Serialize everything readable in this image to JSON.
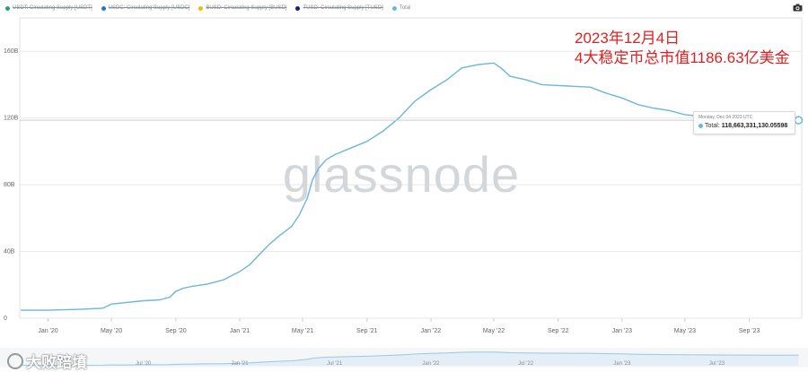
{
  "legend": [
    {
      "label": "USDT: Circulating Supply [USDT]",
      "color": "#26a17b",
      "enabled": false
    },
    {
      "label": "USDC: Circulating Supply [USDC]",
      "color": "#2775ca",
      "enabled": false
    },
    {
      "label": "BUSD: Circulating Supply [BUSD]",
      "color": "#f0b90b",
      "enabled": false
    },
    {
      "label": "TUSD: Circulating Supply [TUSD]",
      "color": "#1a1a8c",
      "enabled": false
    },
    {
      "label": "Total",
      "color": "#6bb6dd",
      "enabled": true
    }
  ],
  "icons": {
    "toolbar": "camera-icon"
  },
  "watermark": "glassnode",
  "annotation": {
    "line1": "2023年12月4日",
    "line2": "4大稳定币总市值1186.63亿美金"
  },
  "tooltip": {
    "date": "Monday, Dec 04 2023 UTC",
    "label": "Total:",
    "value": "118,663,331,130.05598"
  },
  "source_watermark": "大败踣墳",
  "navigator": {
    "labels": [
      "Jul '20",
      "Jan '21",
      "Jul '21",
      "Jan '22",
      "Jul '22",
      "Jan '23",
      "Jul '23"
    ]
  },
  "colors": {
    "line": "#6bb6dd",
    "grid": "#e6e8ea",
    "axis": "#9aa0a6"
  },
  "chart_data": {
    "type": "line",
    "title": "",
    "xlabel": "",
    "ylabel": "",
    "x_tick_labels": [
      "Jan '20",
      "May '20",
      "Sep '20",
      "Jan '21",
      "May '21",
      "Sep '21",
      "Jan '22",
      "May '22",
      "Sep '22",
      "Jan '23",
      "May '23",
      "Sep '23"
    ],
    "y_tick_labels": [
      "0",
      "40B",
      "80B",
      "120B",
      "160B"
    ],
    "y_tick_values": [
      0,
      40,
      80,
      120,
      160
    ],
    "ylim": [
      0,
      180
    ],
    "xlim": [
      "2019-11-08",
      "2023-12-10"
    ],
    "grid": true,
    "series": [
      {
        "name": "Total",
        "color": "#6bb6dd",
        "points": [
          [
            "2019-11-10",
            4.8
          ],
          [
            "2020-01-01",
            4.8
          ],
          [
            "2020-03-01",
            5.3
          ],
          [
            "2020-04-15",
            6.0
          ],
          [
            "2020-05-01",
            8.5
          ],
          [
            "2020-06-01",
            9.5
          ],
          [
            "2020-07-01",
            10.5
          ],
          [
            "2020-08-01",
            11.0
          ],
          [
            "2020-08-20",
            12.5
          ],
          [
            "2020-09-01",
            16.0
          ],
          [
            "2020-09-15",
            18.0
          ],
          [
            "2020-10-01",
            19.0
          ],
          [
            "2020-11-01",
            20.5
          ],
          [
            "2020-12-01",
            23.0
          ],
          [
            "2021-01-01",
            28.0
          ],
          [
            "2021-01-20",
            32.0
          ],
          [
            "2021-02-10",
            39.0
          ],
          [
            "2021-03-01",
            45.0
          ],
          [
            "2021-03-20",
            50.0
          ],
          [
            "2021-04-10",
            55.0
          ],
          [
            "2021-04-25",
            62.0
          ],
          [
            "2021-05-10",
            72.0
          ],
          [
            "2021-05-20",
            83.0
          ],
          [
            "2021-06-01",
            90.0
          ],
          [
            "2021-06-15",
            95.0
          ],
          [
            "2021-07-01",
            98.0
          ],
          [
            "2021-08-01",
            102.0
          ],
          [
            "2021-09-01",
            106.0
          ],
          [
            "2021-10-01",
            112.0
          ],
          [
            "2021-11-01",
            120.0
          ],
          [
            "2021-12-01",
            130.0
          ],
          [
            "2022-01-01",
            137.0
          ],
          [
            "2022-02-01",
            143.0
          ],
          [
            "2022-03-01",
            150.0
          ],
          [
            "2022-04-01",
            152.0
          ],
          [
            "2022-05-01",
            153.0
          ],
          [
            "2022-05-15",
            150.0
          ],
          [
            "2022-06-01",
            145.0
          ],
          [
            "2022-07-01",
            143.0
          ],
          [
            "2022-08-01",
            140.0
          ],
          [
            "2022-09-01",
            139.5
          ],
          [
            "2022-10-01",
            139.0
          ],
          [
            "2022-11-01",
            138.5
          ],
          [
            "2022-12-01",
            135.0
          ],
          [
            "2023-01-01",
            132.0
          ],
          [
            "2023-02-01",
            128.0
          ],
          [
            "2023-03-01",
            126.0
          ],
          [
            "2023-04-01",
            124.5
          ],
          [
            "2023-05-01",
            122.0
          ],
          [
            "2023-06-01",
            121.0
          ],
          [
            "2023-07-01",
            120.0
          ],
          [
            "2023-08-01",
            119.5
          ],
          [
            "2023-09-01",
            119.0
          ],
          [
            "2023-10-01",
            118.3
          ],
          [
            "2023-11-01",
            118.2
          ],
          [
            "2023-12-04",
            118.66
          ]
        ]
      }
    ],
    "hover": {
      "date": "2023-12-04",
      "value": 118.66
    }
  }
}
